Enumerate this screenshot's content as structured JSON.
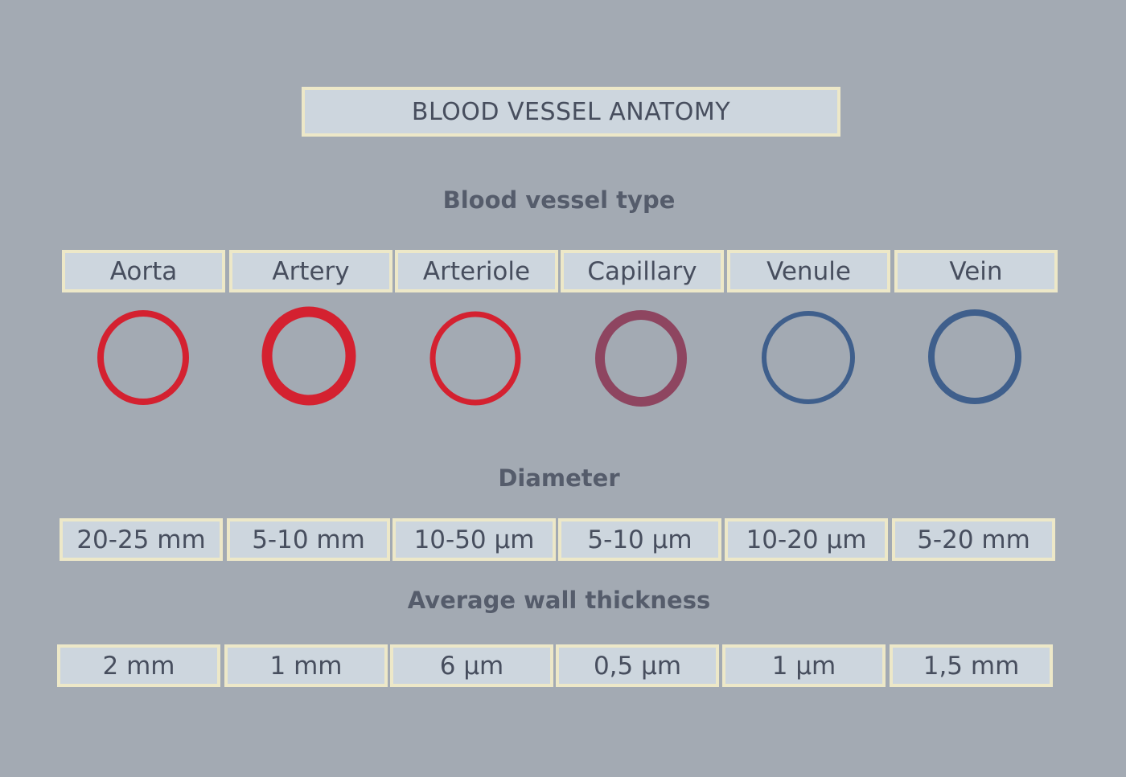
{
  "title": "BLOOD VESSEL ANATOMY",
  "headings": {
    "type": "Blood vessel type",
    "diameter": "Diameter",
    "wall": "Average wall thickness"
  },
  "vessels": [
    {
      "name": "Aorta",
      "diameter": "20-25 mm",
      "wall": "2 mm",
      "color": "#d42130"
    },
    {
      "name": "Artery",
      "diameter": "5-10 mm",
      "wall": "1 mm",
      "color": "#d42130"
    },
    {
      "name": "Arteriole",
      "diameter": "10-50 µm",
      "wall": "6 µm",
      "color": "#d42130"
    },
    {
      "name": "Capillary",
      "diameter": "5-10 µm",
      "wall": "0,5 µm",
      "color": "#8e4560"
    },
    {
      "name": "Venule",
      "diameter": "10-20 µm",
      "wall": "1 µm",
      "color": "#3f5f8c"
    },
    {
      "name": "Vein",
      "diameter": "5-20 mm",
      "wall": "1,5 mm",
      "color": "#3f5f8c"
    }
  ]
}
